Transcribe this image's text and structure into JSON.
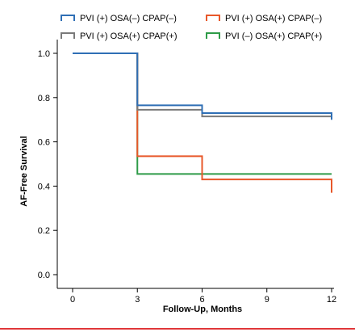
{
  "chart_data": {
    "type": "line",
    "step": true,
    "xlabel": "Follow-Up, Months",
    "ylabel": "AF-Free Survival",
    "xlim": [
      -1,
      12.2
    ],
    "ylim": [
      -0.05,
      1.08
    ],
    "xticks": [
      0,
      3,
      6,
      9,
      12
    ],
    "xtick_labels": [
      "0",
      "3",
      "6",
      "9",
      "12"
    ],
    "yticks": [
      0.0,
      0.2,
      0.4,
      0.6,
      0.8,
      1.0
    ],
    "ytick_labels": [
      "0.0",
      "0.2",
      "0.4",
      "0.6",
      "0.8",
      "1.0"
    ],
    "legend_position": "top",
    "series": [
      {
        "name": "PVI (+) OSA(–) CPAP(–)",
        "color": "#2f6fb5",
        "x": [
          0,
          3,
          6,
          12,
          12
        ],
        "y": [
          1.0,
          0.765,
          0.73,
          0.73,
          0.7
        ]
      },
      {
        "name": "PVI (+) OSA(+) CPAP(–)",
        "color": "#e8582a",
        "x": [
          0,
          3,
          6,
          12,
          12
        ],
        "y": [
          1.0,
          0.535,
          0.43,
          0.43,
          0.37
        ]
      },
      {
        "name": "PVI (+) OSA(+) CPAP(+)",
        "color": "#7a7a7a",
        "x": [
          0,
          3,
          6,
          12,
          12
        ],
        "y": [
          1.0,
          0.745,
          0.715,
          0.715,
          0.715
        ]
      },
      {
        "name": "PVI (–) OSA(+) CPAP(+)",
        "color": "#2e9b48",
        "x": [
          0,
          3,
          12
        ],
        "y": [
          1.0,
          0.455,
          0.455
        ]
      }
    ],
    "draw_order": [
      3,
      1,
      2,
      0
    ]
  }
}
